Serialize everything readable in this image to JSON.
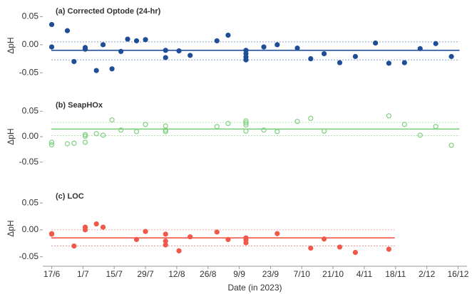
{
  "chart_data": [
    {
      "type": "scatter",
      "title": "(a) Corrected Optode (24-hr)",
      "ylabel": "ΔpH",
      "xlim": [
        "2023-06-13",
        "2023-12-20"
      ],
      "ylim": [
        -0.07,
        0.067
      ],
      "yticks": [
        0.05,
        {
          "value": 0,
          "label": "0.00"
        },
        -0.05
      ],
      "hlines": [
        {
          "value": -0.01,
          "style": "solid"
        },
        {
          "value": 0.005,
          "style": "dashed"
        },
        {
          "value": -0.027,
          "style": "dashed"
        }
      ],
      "hline_end": "2023-12-16",
      "series": [
        {
          "color": "#1f4e96",
          "marker": "filled",
          "x": [
            "2023-06-17",
            "2023-06-17",
            "2023-06-24",
            "2023-06-27",
            "2023-07-02",
            "2023-07-02",
            "2023-07-07",
            "2023-07-10",
            "2023-07-14",
            "2023-07-18",
            "2023-07-21",
            "2023-07-25",
            "2023-07-29",
            "2023-08-07",
            "2023-08-07",
            "2023-08-13",
            "2023-08-18",
            "2023-08-30",
            "2023-09-04",
            "2023-09-12",
            "2023-09-12",
            "2023-09-12",
            "2023-09-12",
            "2023-09-20",
            "2023-09-26",
            "2023-10-05",
            "2023-10-11",
            "2023-10-17",
            "2023-10-24",
            "2023-10-31",
            "2023-11-09",
            "2023-11-15",
            "2023-11-22",
            "2023-11-29",
            "2023-12-06",
            "2023-12-13"
          ],
          "values": [
            0.036,
            -0.004,
            0.025,
            -0.03,
            -0.005,
            -0.008,
            -0.046,
            0.0,
            -0.043,
            -0.012,
            0.01,
            0.007,
            0.009,
            -0.01,
            -0.023,
            -0.011,
            -0.019,
            0.007,
            0.017,
            -0.01,
            -0.016,
            -0.022,
            -0.027,
            -0.004,
            0.0,
            -0.006,
            -0.025,
            -0.016,
            -0.032,
            -0.021,
            0.003,
            -0.033,
            -0.032,
            -0.007,
            0.002,
            -0.021
          ]
        }
      ]
    },
    {
      "type": "scatter",
      "title": "(b) SeapHOx",
      "ylabel": "ΔpH",
      "xlim": [
        "2023-06-13",
        "2023-12-20"
      ],
      "ylim": [
        -0.07,
        0.07
      ],
      "yticks": [
        0.05,
        {
          "value": 0,
          "label": "0.00"
        },
        -0.05
      ],
      "hlines": [
        {
          "value": 0.015,
          "style": "solid"
        },
        {
          "value": 0.028,
          "style": "dashed"
        },
        {
          "value": 0.002,
          "style": "dashed"
        }
      ],
      "hline_end": "2023-12-16",
      "series": [
        {
          "color": "#7fd07f",
          "marker": "open",
          "x": [
            "2023-06-17",
            "2023-06-17",
            "2023-06-24",
            "2023-06-27",
            "2023-07-02",
            "2023-07-02",
            "2023-07-02",
            "2023-07-07",
            "2023-07-10",
            "2023-07-14",
            "2023-07-18",
            "2023-07-25",
            "2023-07-29",
            "2023-08-07",
            "2023-08-07",
            "2023-08-07",
            "2023-08-30",
            "2023-09-04",
            "2023-09-12",
            "2023-09-12",
            "2023-09-12",
            "2023-09-12",
            "2023-09-20",
            "2023-09-26",
            "2023-10-05",
            "2023-10-11",
            "2023-10-17",
            "2023-11-15",
            "2023-11-22",
            "2023-11-29",
            "2023-12-06",
            "2023-12-13"
          ],
          "values": [
            -0.011,
            -0.016,
            -0.014,
            -0.013,
            -0.011,
            0.001,
            0.004,
            0.006,
            0.003,
            0.033,
            0.013,
            0.01,
            0.024,
            0.021,
            0.013,
            0.01,
            0.02,
            0.026,
            0.031,
            0.027,
            0.023,
            0.011,
            0.013,
            0.01,
            0.03,
            0.036,
            0.011,
            0.041,
            0.024,
            0.003,
            0.02,
            -0.017
          ]
        }
      ]
    },
    {
      "type": "scatter",
      "title": "(c) LOC",
      "ylabel": "ΔpH",
      "xlabel": "Date (in 2023)",
      "xlim": [
        "2023-06-13",
        "2023-12-20"
      ],
      "ylim": [
        -0.065,
        0.07
      ],
      "yticks": [
        0.05,
        {
          "value": 0,
          "label": "0.00"
        },
        -0.05
      ],
      "xticks": [
        {
          "value": "2023-06-17",
          "label": "17/6"
        },
        {
          "value": "2023-07-01",
          "label": "1/7"
        },
        {
          "value": "2023-07-15",
          "label": "15/7"
        },
        {
          "value": "2023-07-29",
          "label": "29/7"
        },
        {
          "value": "2023-08-12",
          "label": "12/8"
        },
        {
          "value": "2023-08-26",
          "label": "26/8"
        },
        {
          "value": "2023-09-09",
          "label": "9/9"
        },
        {
          "value": "2023-09-23",
          "label": "23/9"
        },
        {
          "value": "2023-10-07",
          "label": "7/10"
        },
        {
          "value": "2023-10-21",
          "label": "21/10"
        },
        {
          "value": "2023-11-04",
          "label": "4/11"
        },
        {
          "value": "2023-11-18",
          "label": "18/11"
        },
        {
          "value": "2023-12-02",
          "label": "2/12"
        },
        {
          "value": "2023-12-16",
          "label": "16/12"
        }
      ],
      "hlines": [
        {
          "value": -0.015,
          "style": "solid"
        },
        {
          "value": 0.0,
          "style": "dashed"
        },
        {
          "value": -0.03,
          "style": "dashed"
        }
      ],
      "hline_end": "2023-11-17",
      "series": [
        {
          "color": "#f0584a",
          "marker": "filled",
          "x": [
            "2023-06-17",
            "2023-06-17",
            "2023-06-27",
            "2023-07-02",
            "2023-07-02",
            "2023-07-07",
            "2023-07-10",
            "2023-07-25",
            "2023-07-29",
            "2023-08-07",
            "2023-08-07",
            "2023-08-07",
            "2023-08-13",
            "2023-08-18",
            "2023-08-30",
            "2023-09-04",
            "2023-09-12",
            "2023-09-12",
            "2023-09-12",
            "2023-09-26",
            "2023-10-11",
            "2023-10-17",
            "2023-10-24",
            "2023-10-31",
            "2023-11-15"
          ],
          "values": [
            -0.008,
            -0.007,
            -0.03,
            0.005,
            0.0,
            0.011,
            0.005,
            -0.018,
            -0.003,
            -0.008,
            -0.021,
            -0.028,
            -0.039,
            -0.013,
            -0.004,
            -0.018,
            -0.015,
            -0.024,
            -0.019,
            -0.007,
            -0.034,
            -0.017,
            -0.032,
            -0.042,
            -0.036
          ]
        }
      ]
    }
  ]
}
